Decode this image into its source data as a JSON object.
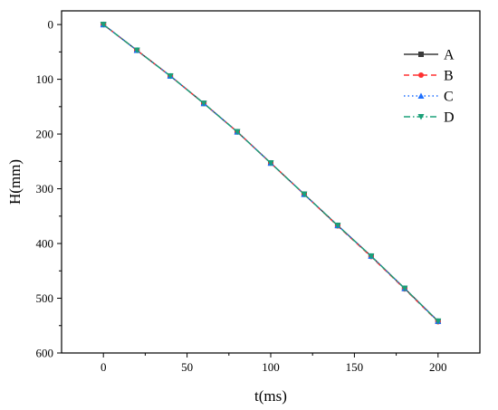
{
  "chart_data": {
    "type": "line",
    "title": "",
    "xlabel": "t(ms)",
    "ylabel": "H(mm)",
    "xlim": [
      -25,
      225
    ],
    "ylim": [
      600,
      -25
    ],
    "y_inverted": true,
    "x_ticks": [
      0,
      50,
      100,
      150,
      200
    ],
    "y_ticks": [
      0,
      100,
      200,
      300,
      400,
      500,
      600
    ],
    "x_tick_labels": [
      "0",
      "50",
      "100",
      "150",
      "200"
    ],
    "y_tick_labels": [
      "0",
      "100",
      "200",
      "300",
      "400",
      "500",
      "600"
    ],
    "grid": false,
    "legend_position": "top-right",
    "x": [
      0,
      20,
      40,
      60,
      80,
      100,
      120,
      140,
      160,
      180,
      200
    ],
    "series": [
      {
        "name": "A",
        "color": "#3a3a3a",
        "line_style": "solid",
        "marker": "square",
        "values": [
          0,
          47,
          94,
          144,
          196,
          253,
          310,
          367,
          423,
          482,
          542
        ]
      },
      {
        "name": "B",
        "color": "#ff3030",
        "line_style": "dashed",
        "marker": "circle",
        "values": [
          0,
          47,
          94,
          144,
          196,
          253,
          310,
          368,
          424,
          483,
          543
        ]
      },
      {
        "name": "C",
        "color": "#1e6fff",
        "line_style": "dotted",
        "marker": "triangle-up",
        "values": [
          0,
          47,
          94,
          144,
          196,
          253,
          310,
          367,
          423,
          482,
          542
        ]
      },
      {
        "name": "D",
        "color": "#1aa078",
        "line_style": "dashdot",
        "marker": "triangle-down",
        "values": [
          0,
          47,
          94,
          144,
          196,
          253,
          310,
          367,
          423,
          482,
          542
        ]
      }
    ]
  }
}
